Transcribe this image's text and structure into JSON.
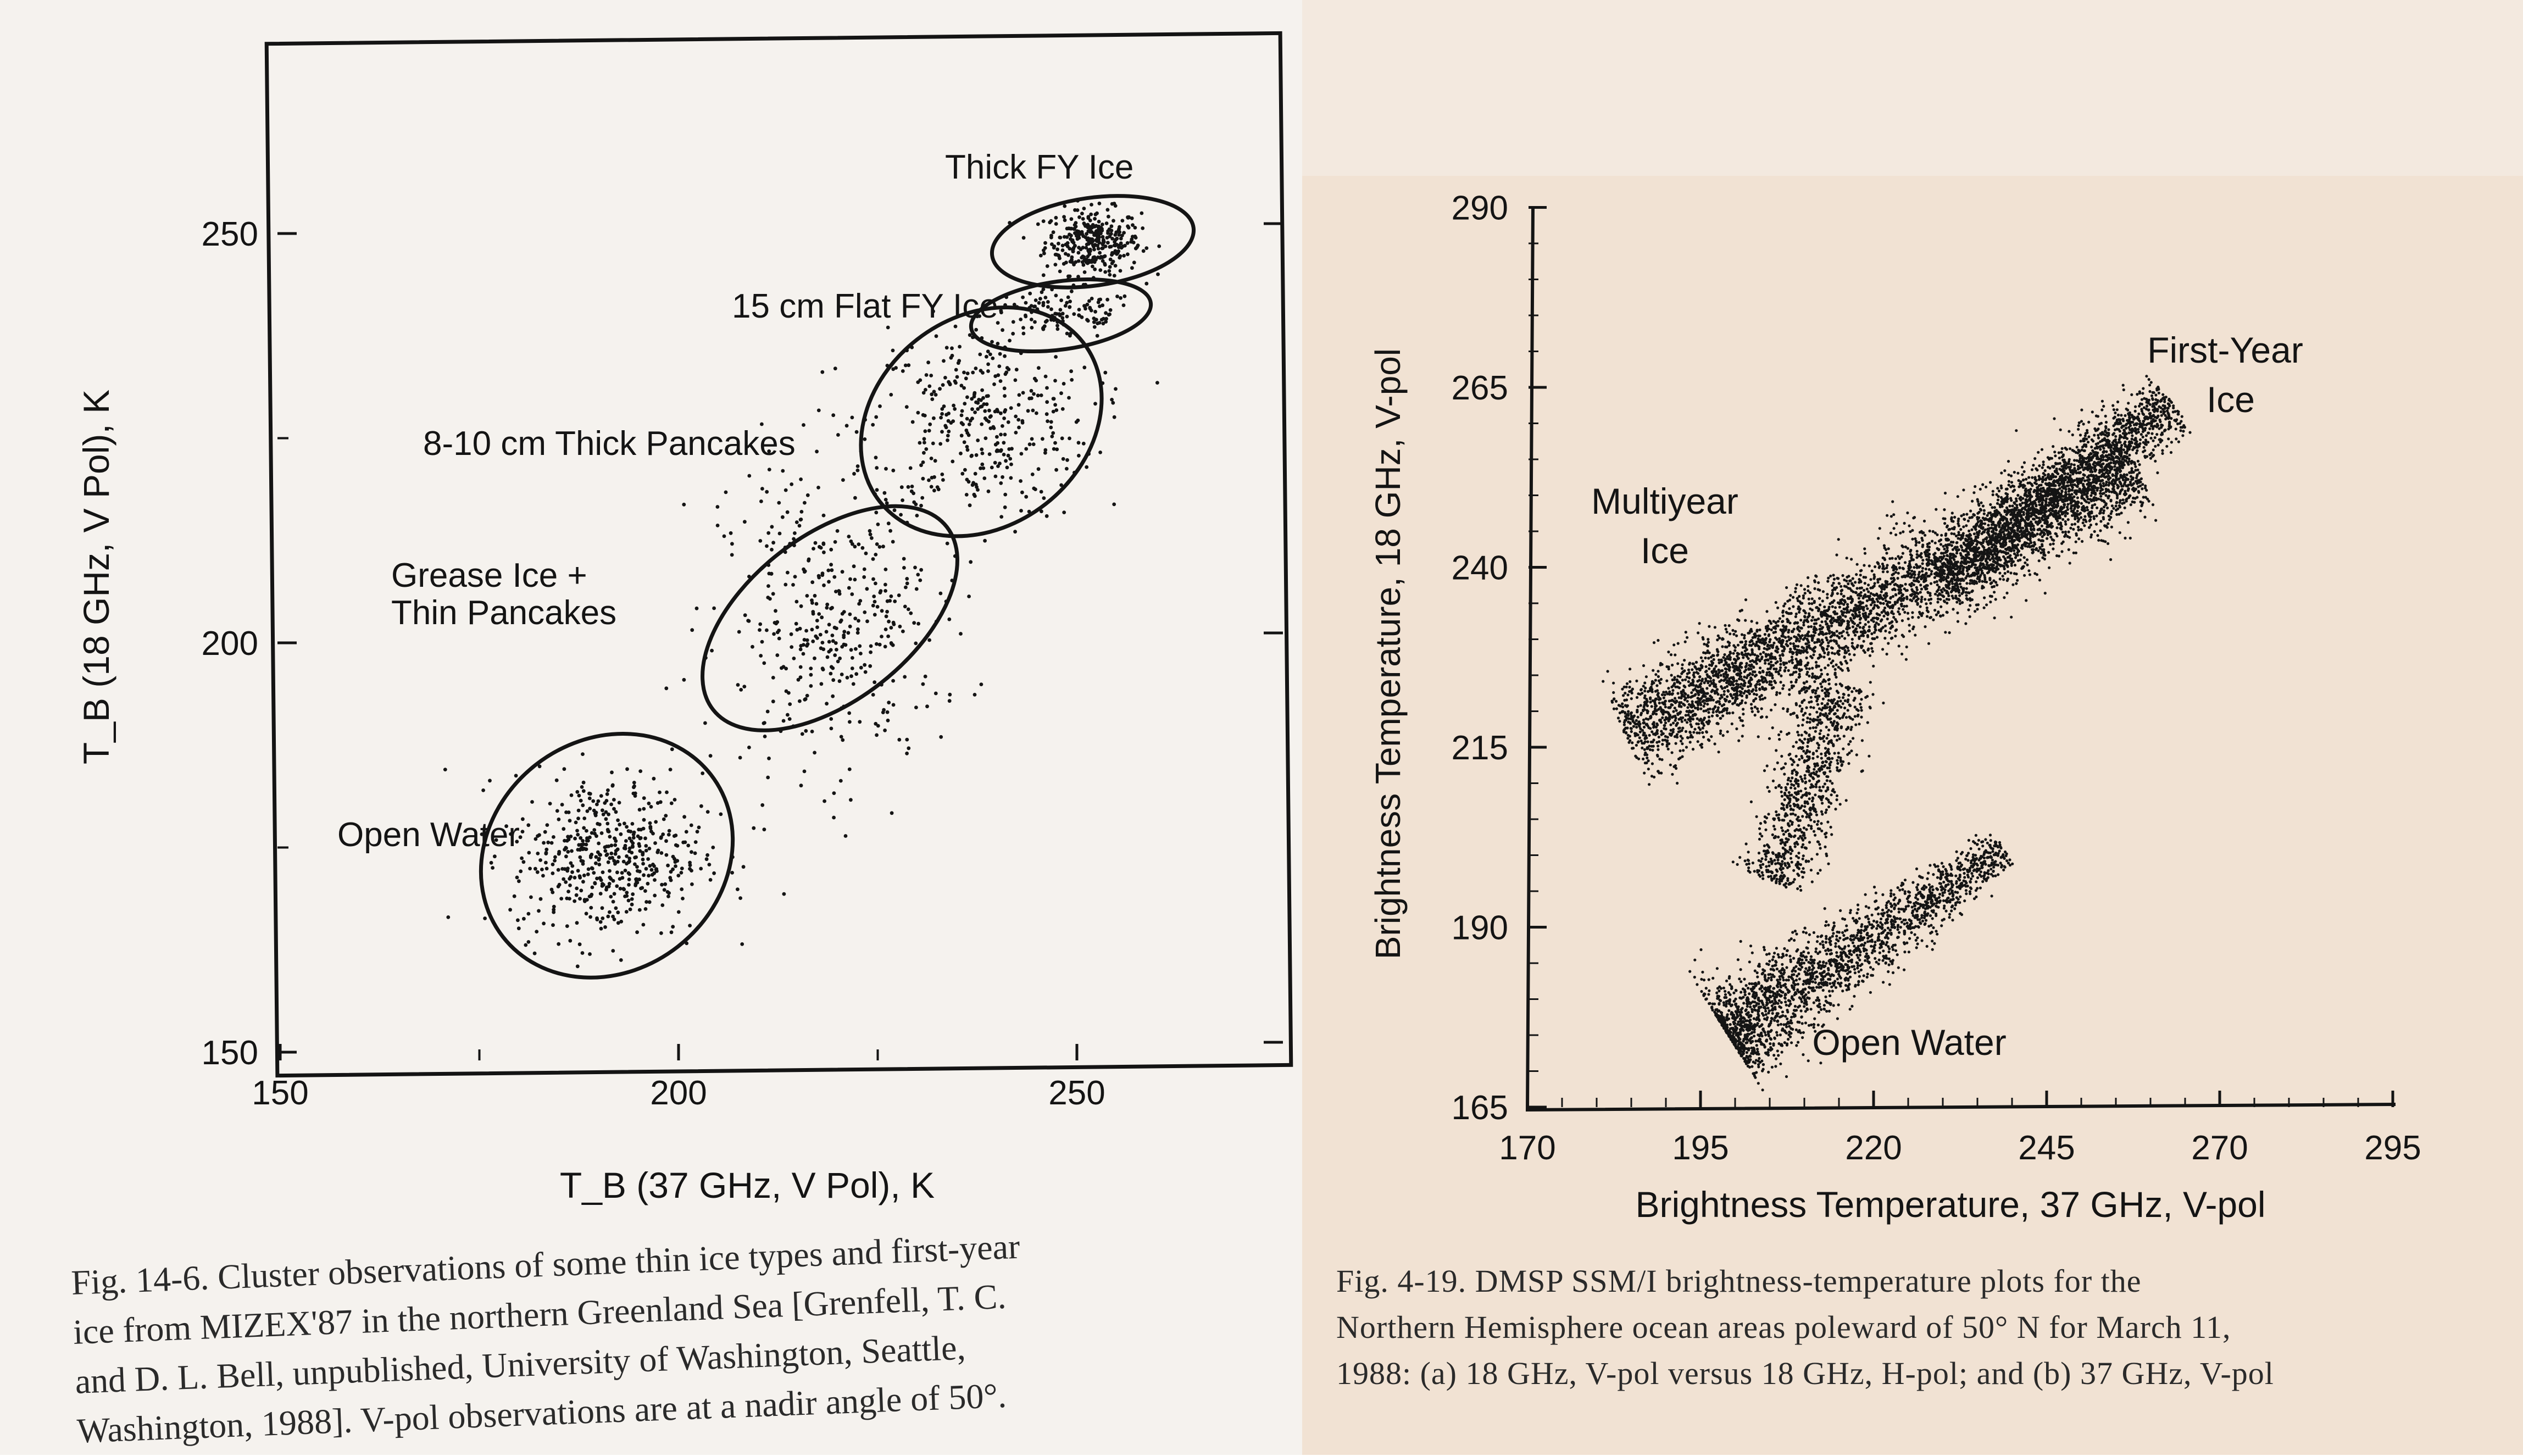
{
  "chart_data": [
    {
      "type": "scatter",
      "xlabel": "T_B (37 GHz, V Pol), K",
      "ylabel": "T_B (18 GHz, V Pol), K",
      "xlim": [
        150,
        275
      ],
      "ylim": [
        150,
        276
      ],
      "xticks": [
        150,
        200,
        250
      ],
      "yticks": [
        150,
        200,
        250
      ],
      "xtick_labels": [
        "150",
        "200",
        "250"
      ],
      "ytick_labels": [
        "150",
        "200",
        "250"
      ],
      "grid": false,
      "clusters": [
        {
          "label": "Thick FY Ice",
          "center": [
            252,
            249
          ],
          "spread": [
            3,
            2
          ]
        },
        {
          "label": "15 cm Flat FY Ice",
          "center": [
            248,
            240
          ],
          "spread": [
            5,
            1.5
          ]
        },
        {
          "label": "8-10 cm Thick Pancakes",
          "center": [
            238,
            227
          ],
          "spread": [
            7,
            6
          ]
        },
        {
          "label": "Grease Ice + Thin Pancakes",
          "center": [
            219,
            203
          ],
          "spread": [
            7,
            9
          ]
        },
        {
          "label": "Open Water",
          "center": [
            191,
            174
          ],
          "spread": [
            6,
            5
          ]
        }
      ],
      "annotations": [
        "Thick FY Ice",
        "15 cm Flat FY Ice",
        "8-10 cm Thick Pancakes",
        "Grease Ice +",
        "Thin Pancakes",
        "Open Water"
      ],
      "caption": [
        "Fig. 14-6. Cluster observations of some thin ice types and first-year",
        "ice from MIZEX'87 in the northern Greenland Sea [Grenfell, T. C.",
        "and D. L. Bell, unpublished, University of Washington, Seattle,",
        "Washington, 1988]. V-pol observations are at a nadir angle of 50°."
      ]
    },
    {
      "type": "scatter",
      "xlabel": "Brightness Temperature, 37 GHz, V-pol",
      "ylabel": "Brightness Temperature, 18 GHz, V-pol",
      "xlim": [
        170,
        295
      ],
      "ylim": [
        165,
        290
      ],
      "xticks": [
        170,
        195,
        220,
        245,
        270,
        295
      ],
      "yticks": [
        165,
        190,
        215,
        240,
        265,
        290
      ],
      "xtick_labels": [
        "170",
        "195",
        "220",
        "245",
        "270",
        "295"
      ],
      "ytick_labels": [
        "165",
        "190",
        "215",
        "240",
        "265",
        "290"
      ],
      "grid": false,
      "clusters": [
        {
          "label": "Multiyear Ice",
          "from": [
            184,
            217
          ],
          "to": [
            258,
            254
          ]
        },
        {
          "label": "First-Year Ice",
          "from": [
            230,
            238
          ],
          "to": [
            263,
            263
          ]
        },
        {
          "label": "Open Water",
          "from": [
            199,
            175
          ],
          "to": [
            239,
            201
          ]
        },
        {
          "label": "",
          "from": [
            206,
            196
          ],
          "to": [
            215,
            224
          ]
        }
      ],
      "annotations": [
        "Multiyear",
        "Ice",
        "First-Year",
        "Ice",
        "Open Water"
      ],
      "caption": [
        "Fig. 4-19.  DMSP SSM/I brightness-temperature plots for the",
        "Northern Hemisphere ocean areas poleward of 50° N for March 11,",
        "1988: (a) 18 GHz, V-pol versus 18 GHz, H-pol; and (b) 37 GHz, V-pol"
      ]
    }
  ],
  "colors": {
    "ink": "#141414",
    "left_page": "#f5f2ee",
    "right_page": "#f1e2d3"
  }
}
